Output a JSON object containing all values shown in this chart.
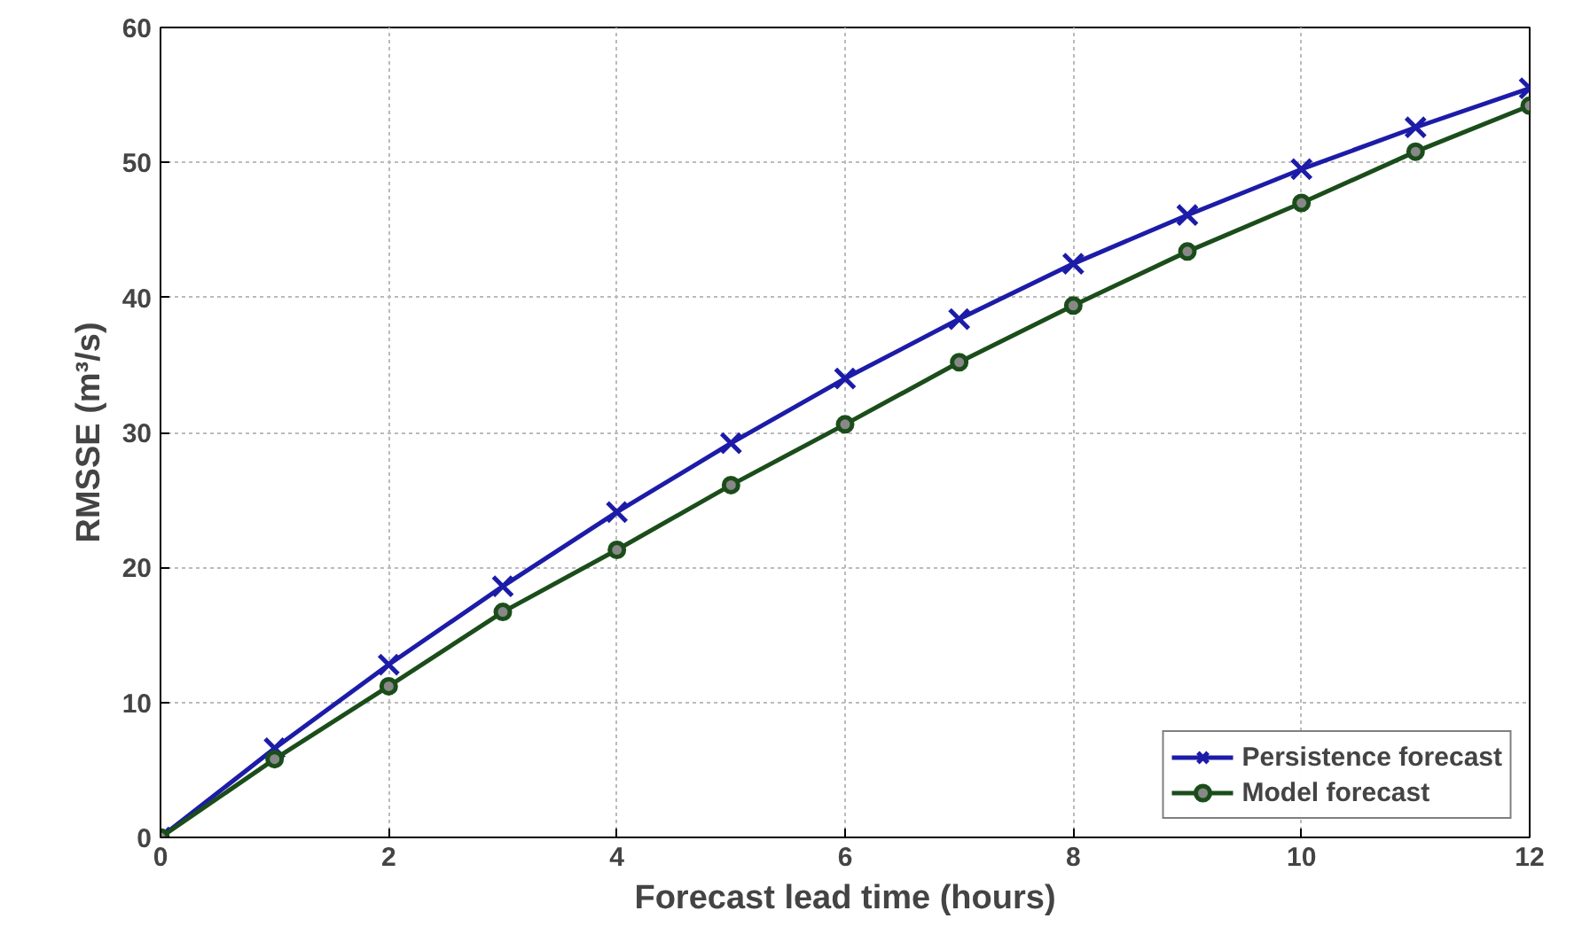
{
  "chart_data": {
    "type": "line",
    "xlabel": "Forecast lead time (hours)",
    "ylabel": "RMSSE (m³/s)",
    "x": [
      0,
      1,
      2,
      3,
      4,
      5,
      6,
      7,
      8,
      9,
      10,
      11,
      12
    ],
    "series": [
      {
        "name": "Persistence forecast",
        "color": "#1c1ca8",
        "marker": "cross",
        "values": [
          0,
          6.6,
          12.8,
          18.6,
          24.1,
          29.2,
          34.0,
          38.4,
          42.5,
          46.1,
          49.5,
          52.6,
          55.5
        ]
      },
      {
        "name": "Model forecast",
        "color": "#1b4d1b",
        "marker": "circle",
        "values": [
          0,
          5.8,
          11.2,
          16.7,
          21.3,
          26.1,
          30.6,
          35.2,
          39.4,
          43.4,
          47.0,
          50.8,
          54.2
        ]
      }
    ],
    "xlim": [
      0,
      12
    ],
    "xticks": [
      0,
      2,
      4,
      6,
      8,
      10,
      12
    ],
    "ylim": [
      0,
      60
    ],
    "yticks": [
      0,
      10,
      20,
      30,
      40,
      50,
      60
    ],
    "grid": true,
    "legend": "bottom right",
    "line_style": "solid"
  }
}
